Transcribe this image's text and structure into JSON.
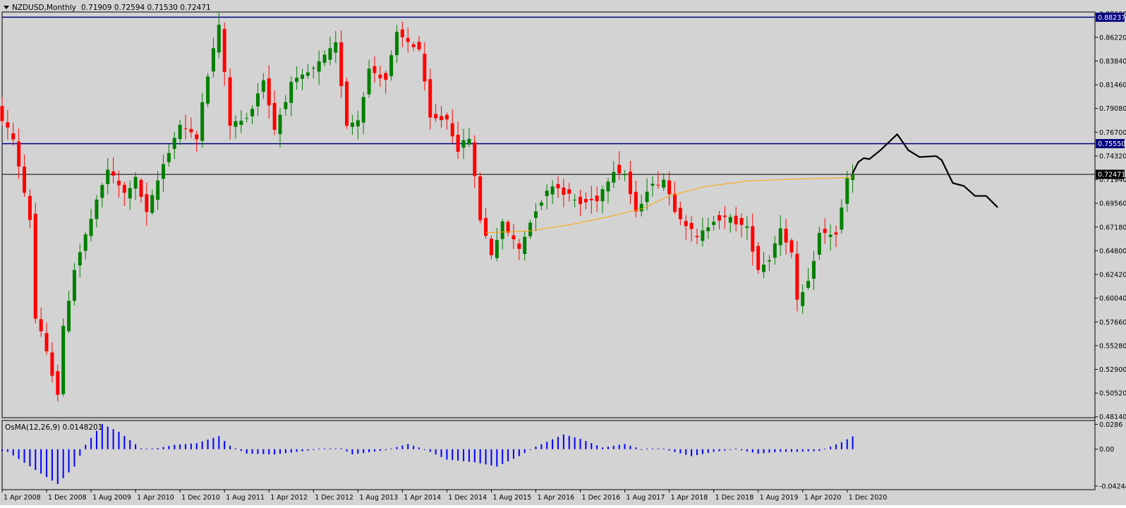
{
  "header": {
    "symbol_text": "NZDUSD,Monthly",
    "ohlc_text": "0.71909 0.72594 0.71530 0.72471"
  },
  "colors": {
    "background": "#d3d3d3",
    "bull": "#008000",
    "bear": "#ff0000",
    "ma": "#ffa500",
    "hline": "#000080",
    "osma": "#0000ff",
    "drawing": "#000000"
  },
  "chart_data": [
    {
      "type": "candlestick",
      "title": "NZDUSD,Monthly",
      "price_axis_ticks": [
        "0.88600",
        "0.86220",
        "0.83840",
        "0.81460",
        "0.79080",
        "0.76700",
        "0.74320",
        "0.71940",
        "0.69560",
        "0.67180",
        "0.64800",
        "0.62420",
        "0.60040",
        "0.57660",
        "0.55280",
        "0.52900",
        "0.50520",
        "0.48140"
      ],
      "ylim": [
        0.4805,
        0.8876
      ],
      "time_axis_labels": [
        "1 Apr 2008",
        "1 Dec 2008",
        "1 Aug 2009",
        "1 Apr 2010",
        "1 Dec 2010",
        "1 Aug 2011",
        "1 Apr 2012",
        "1 Dec 2012",
        "1 Aug 2013",
        "1 Apr 2014",
        "1 Dec 2014",
        "1 Aug 2015",
        "1 Apr 2016",
        "1 Dec 2016",
        "1 Aug 2017",
        "1 Apr 2018",
        "1 Dec 2018",
        "1 Aug 2019",
        "1 Apr 2020",
        "1 Dec 2020"
      ],
      "horizontal_lines": [
        {
          "price": 0.88237,
          "label": "0.88237"
        },
        {
          "price": 0.7555,
          "label": "0.75550"
        },
        {
          "price": 0.72471,
          "label": "0.72471"
        }
      ],
      "anchors": [
        {
          "month": "2008-01",
          "value": 0.796
        },
        {
          "month": "2008-03",
          "value": 0.79
        },
        {
          "month": "2008-06",
          "value": 0.76
        },
        {
          "month": "2008-09",
          "value": 0.68
        },
        {
          "month": "2008-10",
          "value": 0.58
        },
        {
          "month": "2008-11",
          "value": 0.565
        },
        {
          "month": "2009-02",
          "value": 0.505
        },
        {
          "month": "2009-03",
          "value": 0.57
        },
        {
          "month": "2009-05",
          "value": 0.63
        },
        {
          "month": "2009-08",
          "value": 0.68
        },
        {
          "month": "2009-11",
          "value": 0.73
        },
        {
          "month": "2010-02",
          "value": 0.705
        },
        {
          "month": "2010-04",
          "value": 0.72
        },
        {
          "month": "2010-06",
          "value": 0.685
        },
        {
          "month": "2010-09",
          "value": 0.735
        },
        {
          "month": "2010-12",
          "value": 0.775
        },
        {
          "month": "2011-03",
          "value": 0.76
        },
        {
          "month": "2011-04",
          "value": 0.8
        },
        {
          "month": "2011-07",
          "value": 0.875
        },
        {
          "month": "2011-09",
          "value": 0.775
        },
        {
          "month": "2011-12",
          "value": 0.78
        },
        {
          "month": "2012-03",
          "value": 0.82
        },
        {
          "month": "2012-05",
          "value": 0.77
        },
        {
          "month": "2012-08",
          "value": 0.815
        },
        {
          "month": "2012-12",
          "value": 0.83
        },
        {
          "month": "2013-04",
          "value": 0.855
        },
        {
          "month": "2013-06",
          "value": 0.775
        },
        {
          "month": "2013-08",
          "value": 0.78
        },
        {
          "month": "2013-10",
          "value": 0.83
        },
        {
          "month": "2014-01",
          "value": 0.82
        },
        {
          "month": "2014-03",
          "value": 0.865
        },
        {
          "month": "2014-07",
          "value": 0.85
        },
        {
          "month": "2014-09",
          "value": 0.78
        },
        {
          "month": "2014-12",
          "value": 0.78
        },
        {
          "month": "2015-02",
          "value": 0.75
        },
        {
          "month": "2015-04",
          "value": 0.762
        },
        {
          "month": "2015-06",
          "value": 0.68
        },
        {
          "month": "2015-08",
          "value": 0.645
        },
        {
          "month": "2015-10",
          "value": 0.675
        },
        {
          "month": "2016-01",
          "value": 0.65
        },
        {
          "month": "2016-04",
          "value": 0.69
        },
        {
          "month": "2016-07",
          "value": 0.715
        },
        {
          "month": "2016-12",
          "value": 0.695
        },
        {
          "month": "2017-03",
          "value": 0.7
        },
        {
          "month": "2017-06",
          "value": 0.73
        },
        {
          "month": "2017-08",
          "value": 0.725
        },
        {
          "month": "2017-10",
          "value": 0.685
        },
        {
          "month": "2017-12",
          "value": 0.71
        },
        {
          "month": "2018-03",
          "value": 0.72
        },
        {
          "month": "2018-05",
          "value": 0.69
        },
        {
          "month": "2018-09",
          "value": 0.66
        },
        {
          "month": "2018-12",
          "value": 0.68
        },
        {
          "month": "2019-03",
          "value": 0.68
        },
        {
          "month": "2019-06",
          "value": 0.67
        },
        {
          "month": "2019-08",
          "value": 0.63
        },
        {
          "month": "2019-10",
          "value": 0.64
        },
        {
          "month": "2019-12",
          "value": 0.672
        },
        {
          "month": "2020-02",
          "value": 0.645
        },
        {
          "month": "2020-03",
          "value": 0.596
        },
        {
          "month": "2020-05",
          "value": 0.615
        },
        {
          "month": "2020-07",
          "value": 0.665
        },
        {
          "month": "2020-10",
          "value": 0.665
        },
        {
          "month": "2020-11",
          "value": 0.69
        },
        {
          "month": "2020-12",
          "value": 0.72
        },
        {
          "month": "2021-01",
          "value": 0.72471
        }
      ],
      "ma_curve": [
        {
          "month": "2015-07",
          "value": 0.666
        },
        {
          "month": "2016-03",
          "value": 0.668
        },
        {
          "month": "2016-11",
          "value": 0.675
        },
        {
          "month": "2017-05",
          "value": 0.682
        },
        {
          "month": "2017-11",
          "value": 0.69
        },
        {
          "month": "2018-04",
          "value": 0.703
        },
        {
          "month": "2018-10",
          "value": 0.712
        },
        {
          "month": "2019-06",
          "value": 0.718
        },
        {
          "month": "2020-03",
          "value": 0.72
        },
        {
          "month": "2021-01",
          "value": 0.7215
        }
      ],
      "drawn_projection": [
        {
          "month": "2021-01",
          "value": 0.726
        },
        {
          "month": "2021-02",
          "value": 0.737
        },
        {
          "month": "2021-03",
          "value": 0.741
        },
        {
          "month": "2021-04",
          "value": 0.74
        },
        {
          "month": "2021-06",
          "value": 0.749
        },
        {
          "month": "2021-09",
          "value": 0.765
        },
        {
          "month": "2021-11",
          "value": 0.749
        },
        {
          "month": "2022-01",
          "value": 0.742
        },
        {
          "month": "2022-04",
          "value": 0.743
        },
        {
          "month": "2022-05",
          "value": 0.739
        },
        {
          "month": "2022-07",
          "value": 0.716
        },
        {
          "month": "2022-09",
          "value": 0.713
        },
        {
          "month": "2022-11",
          "value": 0.703
        },
        {
          "month": "2023-01",
          "value": 0.703
        },
        {
          "month": "2023-03",
          "value": 0.692
        }
      ]
    },
    {
      "type": "bar",
      "title": "OsMA(12,26,9) 0.0148201",
      "axis_ticks": [
        "0.0286",
        "0.00",
        "-0.042440"
      ],
      "ylim": [
        -0.0465,
        0.033
      ],
      "anchors": [
        {
          "month": "2008-01",
          "value": 0.0
        },
        {
          "month": "2008-05",
          "value": -0.003
        },
        {
          "month": "2008-11",
          "value": -0.028
        },
        {
          "month": "2009-02",
          "value": -0.04
        },
        {
          "month": "2009-05",
          "value": -0.02
        },
        {
          "month": "2009-07",
          "value": 0.005
        },
        {
          "month": "2009-10",
          "value": 0.029
        },
        {
          "month": "2010-01",
          "value": 0.02
        },
        {
          "month": "2010-05",
          "value": 0.001
        },
        {
          "month": "2010-07",
          "value": 0.0
        },
        {
          "month": "2010-11",
          "value": 0.005
        },
        {
          "month": "2011-03",
          "value": 0.007
        },
        {
          "month": "2011-07",
          "value": 0.015
        },
        {
          "month": "2011-09",
          "value": 0.004
        },
        {
          "month": "2011-12",
          "value": -0.005
        },
        {
          "month": "2012-05",
          "value": -0.006
        },
        {
          "month": "2012-09",
          "value": -0.003
        },
        {
          "month": "2013-01",
          "value": 0.0
        },
        {
          "month": "2013-05",
          "value": 0.001
        },
        {
          "month": "2013-07",
          "value": -0.006
        },
        {
          "month": "2014-01",
          "value": -0.001
        },
        {
          "month": "2014-05",
          "value": 0.006
        },
        {
          "month": "2014-08",
          "value": 0.0
        },
        {
          "month": "2014-12",
          "value": -0.012
        },
        {
          "month": "2015-05",
          "value": -0.015
        },
        {
          "month": "2015-09",
          "value": -0.02
        },
        {
          "month": "2016-01",
          "value": -0.008
        },
        {
          "month": "2016-04",
          "value": 0.003
        },
        {
          "month": "2016-09",
          "value": 0.017
        },
        {
          "month": "2016-12",
          "value": 0.012
        },
        {
          "month": "2017-04",
          "value": 0.002
        },
        {
          "month": "2017-08",
          "value": 0.006
        },
        {
          "month": "2017-11",
          "value": 0.0
        },
        {
          "month": "2018-03",
          "value": 0.0
        },
        {
          "month": "2018-08",
          "value": -0.008
        },
        {
          "month": "2018-12",
          "value": -0.003
        },
        {
          "month": "2019-04",
          "value": 0.0
        },
        {
          "month": "2019-08",
          "value": -0.005
        },
        {
          "month": "2019-12",
          "value": -0.003
        },
        {
          "month": "2020-03",
          "value": -0.003
        },
        {
          "month": "2020-07",
          "value": -0.002
        },
        {
          "month": "2020-11",
          "value": 0.008
        },
        {
          "month": "2021-01",
          "value": 0.0148
        }
      ]
    }
  ]
}
